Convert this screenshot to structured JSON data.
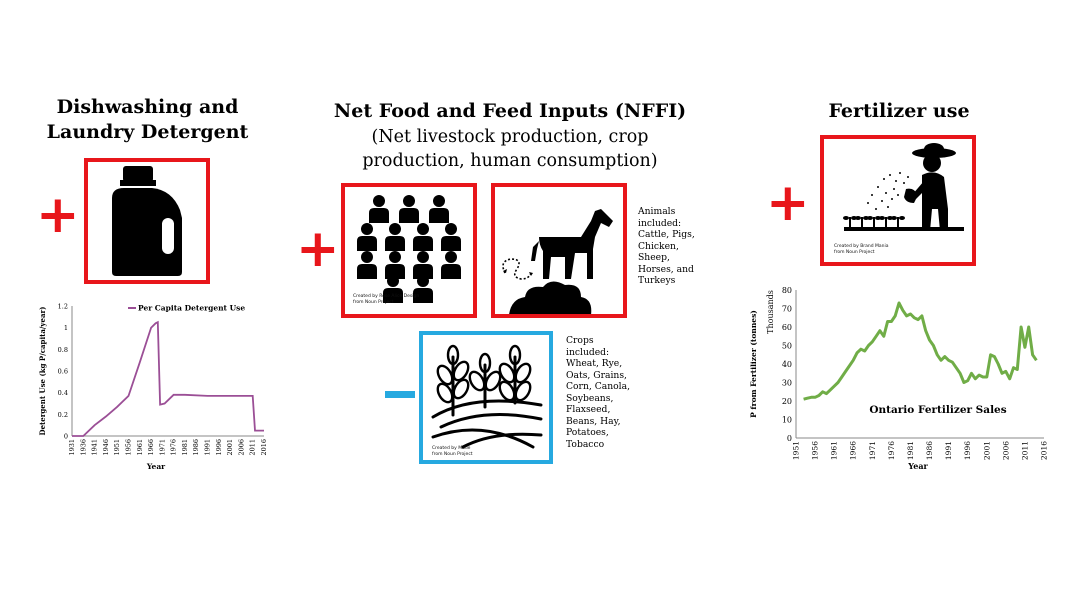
{
  "detergent": {
    "title_line1": "Dishwashing and",
    "title_line2": "Laundry Detergent",
    "sign": "+",
    "icon": "detergent-bottle-icon"
  },
  "nffi": {
    "title": "Net Food and Feed Inputs (NFFI)",
    "subtitle_line1": "(Net livestock production, crop",
    "subtitle_line2": "production, human consumption)",
    "plus_sign": "+",
    "minus_sign": "-",
    "people_credit_1": "Created by Rose Alice Design",
    "people_credit_2": "from Noun Project",
    "animals_text": "Animals\nincluded:\nCattle, Pigs,\nChicken,\nSheep,\nHorses, and\nTurkeys",
    "crops_credit_1": "Created by Made",
    "crops_credit_2": "from Noun Project",
    "crops_text": "Crops\nincluded:\nWheat, Rye,\nOats, Grains,\nCorn, Canola,\nSoybeans,\nFlaxseed,\nBeans, Hay,\nPotatoes,\nTobacco",
    "icons": [
      "people-crowd-icon",
      "horse-manure-icon",
      "crop-field-icon"
    ]
  },
  "fertilizer": {
    "title": "Fertilizer use",
    "sign": "+",
    "credit_1": "Created by Brand Mania",
    "credit_2": "from Noun Project",
    "icon": "farmer-fertilizing-icon"
  },
  "colors": {
    "red": "#e8161b",
    "blue": "#26a9e0",
    "detergent_line": "#9b4f96",
    "fertilizer_line": "#70ad47"
  },
  "chart_data": [
    {
      "type": "line",
      "title": "",
      "legend": "Per Capita Detergent Use",
      "legend_position": "top-right",
      "xlabel": "Year",
      "ylabel": "Detergent Use (kg P/capita/year)",
      "ylim": [
        0,
        1.2
      ],
      "yticks": [
        "0",
        "0.2",
        "0.4",
        "0.6",
        "0.8",
        "1",
        "1.2"
      ],
      "xlim": [
        1931,
        2016
      ],
      "xticks": [
        "1931",
        "1936",
        "1941",
        "1946",
        "1951",
        "1956",
        "1961",
        "1966",
        "1971",
        "1976",
        "1981",
        "1986",
        "1991",
        "1996",
        "2001",
        "2006",
        "2011",
        "2016"
      ],
      "grid": false,
      "series": [
        {
          "name": "Per Capita Detergent Use",
          "color": "#9b4f96",
          "x": [
            1931,
            1936,
            1941,
            1946,
            1951,
            1956,
            1961,
            1966,
            1968,
            1969,
            1970,
            1972,
            1976,
            1981,
            1991,
            2001,
            2011,
            2012,
            2016
          ],
          "y": [
            0,
            0,
            0.1,
            0.18,
            0.27,
            0.37,
            0.68,
            1.0,
            1.04,
            1.05,
            0.29,
            0.3,
            0.38,
            0.38,
            0.37,
            0.37,
            0.37,
            0.05,
            0.05
          ]
        }
      ]
    },
    {
      "type": "line",
      "title": "",
      "annotation": "Ontario Fertilizer Sales",
      "xlabel": "Year",
      "ylabel": "P from Fertilizer (tonnes)",
      "ylabel_secondary": "Thousands",
      "ylim": [
        0,
        80
      ],
      "yticks": [
        "0",
        "10",
        "20",
        "30",
        "40",
        "50",
        "60",
        "70",
        "80"
      ],
      "xlim": [
        1951,
        2016
      ],
      "xticks": [
        "1951",
        "1956",
        "1961",
        "1966",
        "1971",
        "1976",
        "1981",
        "1986",
        "1991",
        "1996",
        "2001",
        "2006",
        "2011",
        "2016"
      ],
      "grid": false,
      "series": [
        {
          "name": "",
          "color": "#70ad47",
          "x": [
            1953,
            1954,
            1955,
            1956,
            1957,
            1958,
            1959,
            1960,
            1961,
            1962,
            1963,
            1964,
            1965,
            1966,
            1967,
            1968,
            1969,
            1970,
            1971,
            1972,
            1973,
            1974,
            1975,
            1976,
            1977,
            1978,
            1979,
            1980,
            1981,
            1982,
            1983,
            1984,
            1985,
            1986,
            1987,
            1988,
            1989,
            1990,
            1991,
            1992,
            1993,
            1994,
            1995,
            1996,
            1997,
            1998,
            1999,
            2000,
            2001,
            2002,
            2003,
            2004,
            2005,
            2006,
            2007,
            2008,
            2009,
            2010,
            2011,
            2012,
            2013,
            2014
          ],
          "y": [
            21,
            21.5,
            22,
            22,
            23,
            25,
            24,
            26,
            28,
            30,
            33,
            36,
            39,
            42,
            46,
            48,
            47,
            50,
            52,
            55,
            58,
            55,
            63,
            63,
            66,
            73,
            69,
            66,
            67,
            65,
            64,
            66,
            58,
            53,
            50,
            45,
            42,
            44,
            42,
            41,
            38,
            35,
            30,
            31,
            35,
            32,
            34,
            33,
            33,
            45,
            44,
            40,
            35,
            36,
            32,
            38,
            37,
            60,
            49,
            60,
            45,
            42
          ]
        }
      ]
    }
  ]
}
